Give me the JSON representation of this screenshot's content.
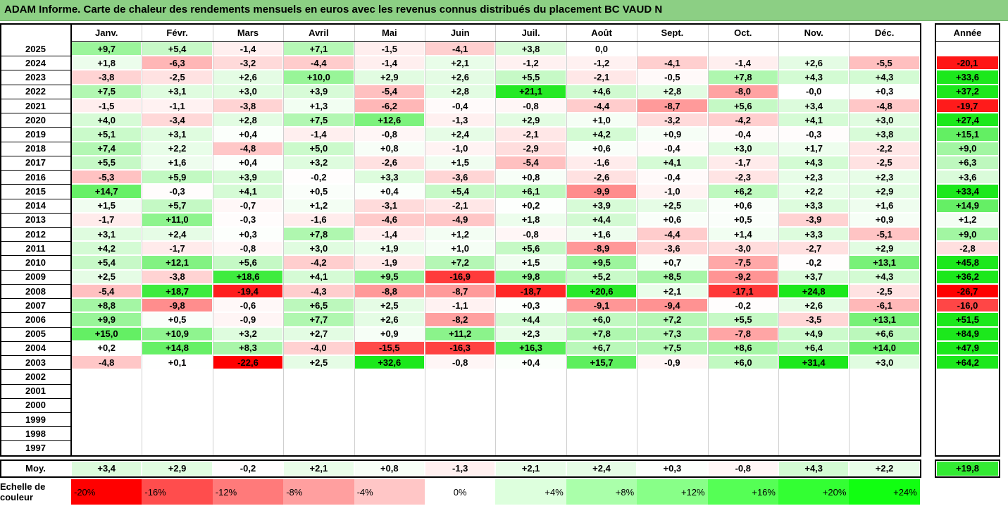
{
  "title": "ADAM Informe. Carte de chaleur des rendements mensuels en euros avec les revenus connus distribués du placement BC VAUD N",
  "chart_data": {
    "type": "heatmap",
    "months": [
      "Janv.",
      "Févr.",
      "Mars",
      "Avril",
      "Mai",
      "Juin",
      "Juil.",
      "Août",
      "Sept.",
      "Oct.",
      "Nov.",
      "Déc."
    ],
    "year_header": "Année",
    "rows": [
      {
        "year": "2025",
        "months": [
          "+9,7",
          "+5,4",
          "-1,4",
          "+7,1",
          "-1,5",
          "-4,1",
          "+3,8",
          "0,0",
          "",
          "",
          "",
          ""
        ],
        "annual": ""
      },
      {
        "year": "2024",
        "months": [
          "+1,8",
          "-6,3",
          "-3,2",
          "-4,4",
          "-1,4",
          "+2,1",
          "-1,2",
          "-1,2",
          "-4,1",
          "-1,4",
          "+2,6",
          "-5,5"
        ],
        "annual": "-20,1"
      },
      {
        "year": "2023",
        "months": [
          "-3,8",
          "-2,5",
          "+2,6",
          "+10,0",
          "+2,9",
          "+2,6",
          "+5,5",
          "-2,1",
          "-0,5",
          "+7,8",
          "+4,3",
          "+4,3"
        ],
        "annual": "+33,6"
      },
      {
        "year": "2022",
        "months": [
          "+7,5",
          "+3,1",
          "+3,0",
          "+3,9",
          "-5,4",
          "+2,8",
          "+21,1",
          "+4,6",
          "+2,8",
          "-8,0",
          "-0,0",
          "+0,3"
        ],
        "annual": "+37,2"
      },
      {
        "year": "2021",
        "months": [
          "-1,5",
          "-1,1",
          "-3,8",
          "+1,3",
          "-6,2",
          "-0,4",
          "-0,8",
          "-4,4",
          "-8,7",
          "+5,6",
          "+3,4",
          "-4,8"
        ],
        "annual": "-19,7"
      },
      {
        "year": "2020",
        "months": [
          "+4,0",
          "-3,4",
          "+2,8",
          "+7,5",
          "+12,6",
          "-1,3",
          "+2,9",
          "+1,0",
          "-3,2",
          "-4,2",
          "+4,1",
          "+3,0"
        ],
        "annual": "+27,4"
      },
      {
        "year": "2019",
        "months": [
          "+5,1",
          "+3,1",
          "+0,4",
          "-1,4",
          "-0,8",
          "+2,4",
          "-2,1",
          "+4,2",
          "+0,9",
          "-0,4",
          "-0,3",
          "+3,8"
        ],
        "annual": "+15,1"
      },
      {
        "year": "2018",
        "months": [
          "+7,4",
          "+2,2",
          "-4,8",
          "+5,0",
          "+0,8",
          "-1,0",
          "-2,9",
          "+0,6",
          "-0,4",
          "+3,0",
          "+1,7",
          "-2,2"
        ],
        "annual": "+9,0"
      },
      {
        "year": "2017",
        "months": [
          "+5,5",
          "+1,6",
          "+0,4",
          "+3,2",
          "-2,6",
          "+1,5",
          "-5,4",
          "-1,6",
          "+4,1",
          "-1,7",
          "+4,3",
          "-2,5"
        ],
        "annual": "+6,3"
      },
      {
        "year": "2016",
        "months": [
          "-5,3",
          "+5,9",
          "+3,9",
          "-0,2",
          "+3,3",
          "-3,6",
          "+0,8",
          "-2,6",
          "-0,4",
          "-2,3",
          "+2,3",
          "+2,3"
        ],
        "annual": "+3,6"
      },
      {
        "year": "2015",
        "months": [
          "+14,7",
          "-0,3",
          "+4,1",
          "+0,5",
          "+0,4",
          "+5,4",
          "+6,1",
          "-9,9",
          "-1,0",
          "+6,2",
          "+2,2",
          "+2,9"
        ],
        "annual": "+33,4"
      },
      {
        "year": "2014",
        "months": [
          "+1,5",
          "+5,7",
          "-0,7",
          "+1,2",
          "-3,1",
          "-2,1",
          "+0,2",
          "+3,9",
          "+2,5",
          "+0,6",
          "+3,3",
          "+1,6"
        ],
        "annual": "+14,9"
      },
      {
        "year": "2013",
        "months": [
          "-1,7",
          "+11,0",
          "-0,3",
          "-1,6",
          "-4,6",
          "-4,9",
          "+1,8",
          "+4,4",
          "+0,6",
          "+0,5",
          "-3,9",
          "+0,9"
        ],
        "annual": "+1,2"
      },
      {
        "year": "2012",
        "months": [
          "+3,1",
          "+2,4",
          "+0,3",
          "+7,8",
          "-1,4",
          "+1,2",
          "-0,8",
          "+1,6",
          "-4,4",
          "+1,4",
          "+3,3",
          "-5,1"
        ],
        "annual": "+9,0"
      },
      {
        "year": "2011",
        "months": [
          "+4,2",
          "-1,7",
          "-0,8",
          "+3,0",
          "+1,9",
          "+1,0",
          "+5,6",
          "-8,9",
          "-3,6",
          "-3,0",
          "-2,7",
          "+2,9"
        ],
        "annual": "-2,8"
      },
      {
        "year": "2010",
        "months": [
          "+5,4",
          "+12,1",
          "+5,6",
          "-4,2",
          "-1,9",
          "+7,2",
          "+1,5",
          "+9,5",
          "+0,7",
          "-7,5",
          "-0,2",
          "+13,1"
        ],
        "annual": "+45,8"
      },
      {
        "year": "2009",
        "months": [
          "+2,5",
          "-3,8",
          "+18,6",
          "+4,1",
          "+9,5",
          "-16,9",
          "+9,8",
          "+5,2",
          "+8,5",
          "-9,2",
          "+3,7",
          "+4,3"
        ],
        "annual": "+36,2"
      },
      {
        "year": "2008",
        "months": [
          "-5,4",
          "+18,7",
          "-19,4",
          "-4,3",
          "-8,8",
          "-8,7",
          "-18,7",
          "+20,6",
          "+2,1",
          "-17,1",
          "+24,8",
          "-2,5"
        ],
        "annual": "-26,7"
      },
      {
        "year": "2007",
        "months": [
          "+8,8",
          "-9,8",
          "-0,6",
          "+6,5",
          "+2,5",
          "-1,1",
          "+0,3",
          "-9,1",
          "-9,4",
          "-0,2",
          "+2,6",
          "-6,1"
        ],
        "annual": "-16,0"
      },
      {
        "year": "2006",
        "months": [
          "+9,9",
          "+0,5",
          "-0,9",
          "+7,7",
          "+2,6",
          "-8,2",
          "+4,4",
          "+6,0",
          "+7,2",
          "+5,5",
          "-3,5",
          "+13,1"
        ],
        "annual": "+51,5"
      },
      {
        "year": "2005",
        "months": [
          "+15,0",
          "+10,9",
          "+3,2",
          "+2,7",
          "+0,9",
          "+11,2",
          "+2,3",
          "+7,8",
          "+7,3",
          "-7,8",
          "+4,9",
          "+6,6"
        ],
        "annual": "+84,9"
      },
      {
        "year": "2004",
        "months": [
          "+0,2",
          "+14,8",
          "+8,3",
          "-4,0",
          "-15,5",
          "-16,3",
          "+16,3",
          "+6,7",
          "+7,5",
          "+8,6",
          "+6,4",
          "+14,0"
        ],
        "annual": "+47,9"
      },
      {
        "year": "2003",
        "months": [
          "-4,8",
          "+0,1",
          "-22,6",
          "+2,5",
          "+32,6",
          "-0,8",
          "+0,4",
          "+15,7",
          "-0,9",
          "+6,0",
          "+31,4",
          "+3,0"
        ],
        "annual": "+64,2"
      },
      {
        "year": "2002",
        "months": [
          "",
          "",
          "",
          "",
          "",
          "",
          "",
          "",
          "",
          "",
          "",
          ""
        ],
        "annual": ""
      },
      {
        "year": "2001",
        "months": [
          "",
          "",
          "",
          "",
          "",
          "",
          "",
          "",
          "",
          "",
          "",
          ""
        ],
        "annual": ""
      },
      {
        "year": "2000",
        "months": [
          "",
          "",
          "",
          "",
          "",
          "",
          "",
          "",
          "",
          "",
          "",
          ""
        ],
        "annual": ""
      },
      {
        "year": "1999",
        "months": [
          "",
          "",
          "",
          "",
          "",
          "",
          "",
          "",
          "",
          "",
          "",
          ""
        ],
        "annual": ""
      },
      {
        "year": "1998",
        "months": [
          "",
          "",
          "",
          "",
          "",
          "",
          "",
          "",
          "",
          "",
          "",
          ""
        ],
        "annual": ""
      },
      {
        "year": "1997",
        "months": [
          "",
          "",
          "",
          "",
          "",
          "",
          "",
          "",
          "",
          "",
          "",
          ""
        ],
        "annual": ""
      }
    ],
    "average": {
      "label": "Moy.",
      "months": [
        "+3,4",
        "+2,9",
        "-0,2",
        "+2,1",
        "+0,8",
        "-1,3",
        "+2,1",
        "+2,4",
        "+0,3",
        "-0,8",
        "+4,3",
        "+2,2"
      ],
      "annual": "+19,8"
    },
    "scale": {
      "label": "Echelle de couleur",
      "items": [
        "-20%",
        "-16%",
        "-12%",
        "-8%",
        "-4%",
        "0%",
        "+4%",
        "+8%",
        "+12%",
        "+16%",
        "+20%",
        "+24%"
      ],
      "colors": [
        "#ff0000",
        "#ff4d4d",
        "#ff7a7a",
        "#ff9f9f",
        "#ffc6c6",
        "#ffffff",
        "#ddffdd",
        "#aaffaa",
        "#88ff88",
        "#55ff55",
        "#33ff33",
        "#11ff11"
      ]
    }
  }
}
